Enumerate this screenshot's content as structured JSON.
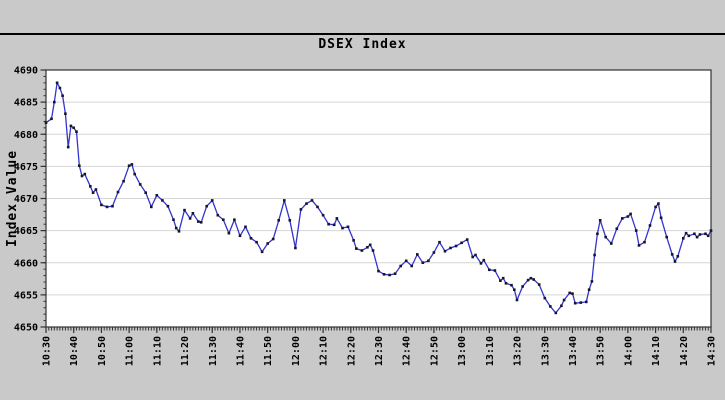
{
  "header": {
    "title": "DSEX Index"
  },
  "colors": {
    "window_bg": "#c9c9c9",
    "plot_bg": "#ffffff",
    "grid": "#d6d6d6",
    "axis": "#333333",
    "divider": "#000000",
    "line": "#3434cf",
    "marker": "#15152e",
    "text": "#000000"
  },
  "chart_data": {
    "type": "line",
    "title": "DSEX Index",
    "xlabel": "",
    "ylabel": "Index Value",
    "ylim": [
      4650,
      4690
    ],
    "y_ticks": [
      4650,
      4655,
      4660,
      4665,
      4670,
      4675,
      4680,
      4685,
      4690
    ],
    "x_labels": [
      "10:30",
      "10:40",
      "10:50",
      "11:00",
      "11:10",
      "11:20",
      "11:30",
      "11:40",
      "11:50",
      "12:00",
      "12:10",
      "12:20",
      "12:30",
      "12:40",
      "12:50",
      "13:00",
      "13:10",
      "13:20",
      "13:30",
      "13:40",
      "13:50",
      "14:00",
      "14:10",
      "14:20",
      "14:30"
    ],
    "x_range_minutes": [
      "10:30",
      "14:30"
    ],
    "grid": "horizontal",
    "legend": "none",
    "series": [
      {
        "name": "DSEX Index",
        "color": "#3434cf",
        "points": [
          [
            "10:30",
            4681.8
          ],
          [
            "10:32",
            4682.4
          ],
          [
            "10:33",
            4685.0
          ],
          [
            "10:34",
            4688.0
          ],
          [
            "10:35",
            4687.2
          ],
          [
            "10:36",
            4686.0
          ],
          [
            "10:37",
            4683.2
          ],
          [
            "10:38",
            4678.0
          ],
          [
            "10:39",
            4681.3
          ],
          [
            "10:40",
            4681.0
          ],
          [
            "10:41",
            4680.4
          ],
          [
            "10:42",
            4675.1
          ],
          [
            "10:43",
            4673.5
          ],
          [
            "10:44",
            4673.8
          ],
          [
            "10:46",
            4671.9
          ],
          [
            "10:47",
            4670.9
          ],
          [
            "10:48",
            4671.4
          ],
          [
            "10:50",
            4669.0
          ],
          [
            "10:52",
            4668.7
          ],
          [
            "10:54",
            4668.8
          ],
          [
            "10:56",
            4671.0
          ],
          [
            "10:58",
            4672.7
          ],
          [
            "11:00",
            4675.1
          ],
          [
            "11:01",
            4675.3
          ],
          [
            "11:02",
            4673.8
          ],
          [
            "11:04",
            4672.2
          ],
          [
            "11:06",
            4670.9
          ],
          [
            "11:08",
            4668.7
          ],
          [
            "11:10",
            4670.5
          ],
          [
            "11:12",
            4669.7
          ],
          [
            "11:14",
            4668.8
          ],
          [
            "11:16",
            4666.7
          ],
          [
            "11:17",
            4665.4
          ],
          [
            "11:18",
            4664.9
          ],
          [
            "11:20",
            4668.2
          ],
          [
            "11:22",
            4666.9
          ],
          [
            "11:23",
            4667.7
          ],
          [
            "11:25",
            4666.4
          ],
          [
            "11:26",
            4666.3
          ],
          [
            "11:28",
            4668.8
          ],
          [
            "11:30",
            4669.7
          ],
          [
            "11:32",
            4667.4
          ],
          [
            "11:34",
            4666.7
          ],
          [
            "11:36",
            4664.6
          ],
          [
            "11:38",
            4666.7
          ],
          [
            "11:40",
            4664.2
          ],
          [
            "11:42",
            4665.6
          ],
          [
            "11:44",
            4663.8
          ],
          [
            "11:46",
            4663.2
          ],
          [
            "11:48",
            4661.7
          ],
          [
            "11:50",
            4663.0
          ],
          [
            "11:52",
            4663.7
          ],
          [
            "11:54",
            4666.6
          ],
          [
            "11:56",
            4669.7
          ],
          [
            "11:58",
            4666.6
          ],
          [
            "12:00",
            4662.3
          ],
          [
            "12:02",
            4668.3
          ],
          [
            "12:04",
            4669.2
          ],
          [
            "12:06",
            4669.7
          ],
          [
            "12:08",
            4668.7
          ],
          [
            "12:10",
            4667.4
          ],
          [
            "12:12",
            4666.0
          ],
          [
            "12:14",
            4665.9
          ],
          [
            "12:15",
            4666.9
          ],
          [
            "12:17",
            4665.4
          ],
          [
            "12:19",
            4665.6
          ],
          [
            "12:21",
            4663.5
          ],
          [
            "12:22",
            4662.2
          ],
          [
            "12:24",
            4661.9
          ],
          [
            "12:26",
            4662.4
          ],
          [
            "12:27",
            4662.8
          ],
          [
            "12:28",
            4661.9
          ],
          [
            "12:30",
            4658.7
          ],
          [
            "12:32",
            4658.2
          ],
          [
            "12:34",
            4658.1
          ],
          [
            "12:36",
            4658.3
          ],
          [
            "12:38",
            4659.5
          ],
          [
            "12:40",
            4660.3
          ],
          [
            "12:42",
            4659.5
          ],
          [
            "12:44",
            4661.3
          ],
          [
            "12:46",
            4660.0
          ],
          [
            "12:48",
            4660.3
          ],
          [
            "12:50",
            4661.6
          ],
          [
            "12:52",
            4663.2
          ],
          [
            "12:54",
            4661.8
          ],
          [
            "12:56",
            4662.3
          ],
          [
            "12:58",
            4662.6
          ],
          [
            "13:00",
            4663.1
          ],
          [
            "13:02",
            4663.6
          ],
          [
            "13:04",
            4660.9
          ],
          [
            "13:05",
            4661.2
          ],
          [
            "13:07",
            4659.9
          ],
          [
            "13:08",
            4660.4
          ],
          [
            "13:10",
            4658.9
          ],
          [
            "13:12",
            4658.8
          ],
          [
            "13:14",
            4657.2
          ],
          [
            "13:15",
            4657.6
          ],
          [
            "13:16",
            4656.8
          ],
          [
            "13:18",
            4656.5
          ],
          [
            "13:19",
            4655.8
          ],
          [
            "13:20",
            4654.2
          ],
          [
            "13:22",
            4656.3
          ],
          [
            "13:24",
            4657.3
          ],
          [
            "13:25",
            4657.6
          ],
          [
            "13:26",
            4657.4
          ],
          [
            "13:28",
            4656.6
          ],
          [
            "13:30",
            4654.5
          ],
          [
            "13:32",
            4653.2
          ],
          [
            "13:34",
            4652.2
          ],
          [
            "13:36",
            4653.3
          ],
          [
            "13:37",
            4654.2
          ],
          [
            "13:39",
            4655.3
          ],
          [
            "13:40",
            4655.2
          ],
          [
            "13:41",
            4653.7
          ],
          [
            "13:43",
            4653.8
          ],
          [
            "13:45",
            4653.9
          ],
          [
            "13:46",
            4655.8
          ],
          [
            "13:47",
            4657.1
          ],
          [
            "13:48",
            4661.2
          ],
          [
            "13:49",
            4664.5
          ],
          [
            "13:50",
            4666.6
          ],
          [
            "13:52",
            4664.0
          ],
          [
            "13:54",
            4663.0
          ],
          [
            "13:56",
            4665.3
          ],
          [
            "13:58",
            4666.9
          ],
          [
            "14:00",
            4667.2
          ],
          [
            "14:01",
            4667.6
          ],
          [
            "14:03",
            4665.0
          ],
          [
            "14:04",
            4662.7
          ],
          [
            "14:06",
            4663.2
          ],
          [
            "14:08",
            4665.8
          ],
          [
            "14:10",
            4668.7
          ],
          [
            "14:11",
            4669.2
          ],
          [
            "14:12",
            4667.0
          ],
          [
            "14:14",
            4664.0
          ],
          [
            "14:16",
            4661.3
          ],
          [
            "14:17",
            4660.2
          ],
          [
            "14:18",
            4661.0
          ],
          [
            "14:20",
            4663.8
          ],
          [
            "14:21",
            4664.6
          ],
          [
            "14:22",
            4664.2
          ],
          [
            "14:24",
            4664.5
          ],
          [
            "14:25",
            4664.0
          ],
          [
            "14:26",
            4664.4
          ],
          [
            "14:28",
            4664.5
          ],
          [
            "14:29",
            4664.2
          ],
          [
            "14:30",
            4665.0
          ]
        ]
      }
    ]
  }
}
